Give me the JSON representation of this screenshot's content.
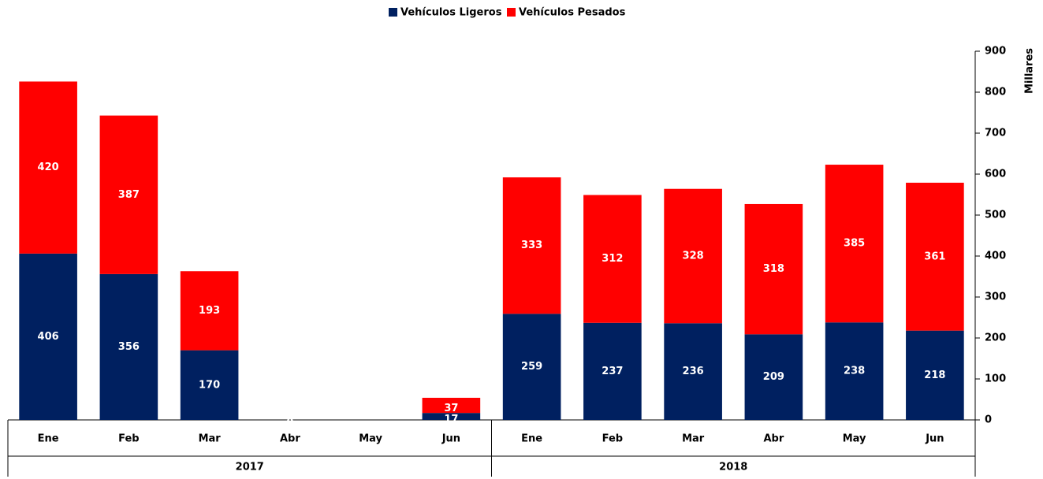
{
  "chart_data": {
    "type": "stacked_bar",
    "y_label": "Millares",
    "groups": [
      {
        "name": "2017",
        "categories": [
          "Ene",
          "Feb",
          "Mar",
          "Abr",
          "May",
          "Jun"
        ]
      },
      {
        "name": "2018",
        "categories": [
          "Ene",
          "Feb",
          "Mar",
          "Abr",
          "May",
          "Jun"
        ]
      }
    ],
    "series": [
      {
        "name": "Vehículos Ligeros",
        "color": "#002060",
        "values": [
          406,
          356,
          170,
          0,
          null,
          17,
          259,
          237,
          236,
          209,
          238,
          218
        ]
      },
      {
        "name": "Vehículos Pesados",
        "color": "#ff0000",
        "values": [
          420,
          387,
          193,
          null,
          null,
          37,
          333,
          312,
          328,
          318,
          385,
          361
        ]
      }
    ],
    "ylim": [
      0,
      900
    ],
    "yticks": [
      0,
      100,
      200,
      300,
      400,
      500,
      600,
      700,
      800,
      900
    ],
    "axis_side": "right",
    "legend": "top"
  }
}
